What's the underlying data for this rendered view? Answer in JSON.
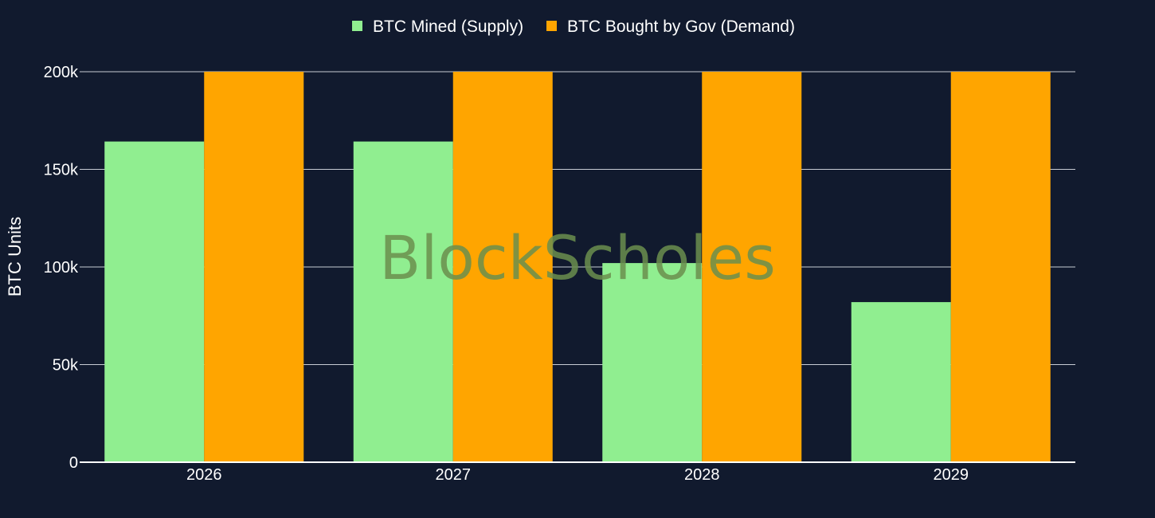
{
  "chart_data": {
    "type": "bar",
    "categories": [
      "2026",
      "2027",
      "2028",
      "2029"
    ],
    "series": [
      {
        "name": "BTC Mined (Supply)",
        "color": "#90ee90",
        "values": [
          164250,
          164250,
          102000,
          82000
        ]
      },
      {
        "name": "BTC Bought by Gov (Demand)",
        "color": "#ffa500",
        "values": [
          200000,
          200000,
          200000,
          200000
        ]
      }
    ],
    "ylabel": "BTC Units",
    "ylim": [
      0,
      200000
    ],
    "y_ticks": [
      0,
      50000,
      100000,
      150000,
      200000
    ],
    "y_tick_labels": [
      "0",
      "50k",
      "100k",
      "150k",
      "200k"
    ],
    "grid": true,
    "legend_position": "top-center"
  },
  "watermark": "BlockScholes",
  "colors": {
    "background": "#111a2e",
    "grid": "#c8ccd4"
  }
}
